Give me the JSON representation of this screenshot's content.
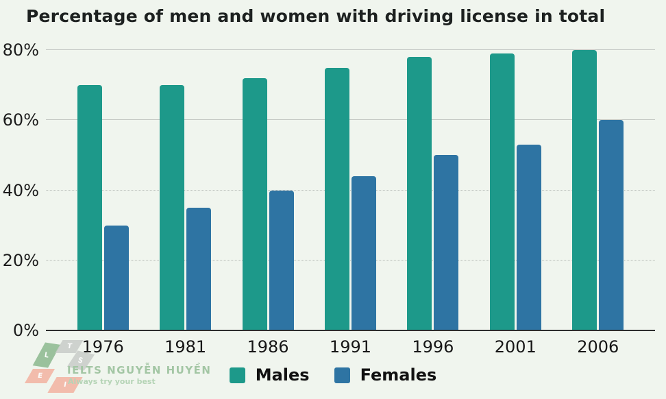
{
  "chart_data": {
    "type": "bar",
    "title": "Percentage of men and women with driving license in total",
    "categories": [
      "1976",
      "1981",
      "1986",
      "1991",
      "1996",
      "2001",
      "2006"
    ],
    "series": [
      {
        "name": "Males",
        "color": "#1d998a",
        "values": [
          70,
          70,
          72,
          75,
          78,
          79,
          80
        ]
      },
      {
        "name": "Females",
        "color": "#2e74a3",
        "values": [
          30,
          35,
          40,
          44,
          50,
          53,
          60
        ]
      }
    ],
    "xlabel": "",
    "ylabel": "",
    "ylim": [
      0,
      80
    ],
    "yticks": [
      "0%",
      "20%",
      "40%",
      "60%",
      "80%"
    ],
    "grid": true,
    "legend_position": "bottom-center"
  },
  "legend": {
    "items": [
      {
        "label": "Males",
        "color": "#1d998a"
      },
      {
        "label": "Females",
        "color": "#2e74a3"
      }
    ]
  },
  "colors": {
    "background": "#f0f5ee",
    "male_bar": "#1d998a",
    "female_bar": "#2e74a3",
    "axis": "#2e2e2e",
    "gridline": "#c3c7c3",
    "title_text": "#1d2120"
  },
  "watermark": {
    "brand": "IELTS NGUYỄN HUYỀN",
    "tagline": "Always try your best",
    "diamonds": [
      {
        "letter": "L",
        "color": "#8cb98e"
      },
      {
        "letter": "T",
        "color": "#c9cdc9"
      },
      {
        "letter": "S",
        "color": "#c9cdc9"
      },
      {
        "letter": "E",
        "color": "#f3b3a1"
      },
      {
        "letter": "I",
        "color": "#f3b3a1"
      }
    ]
  }
}
